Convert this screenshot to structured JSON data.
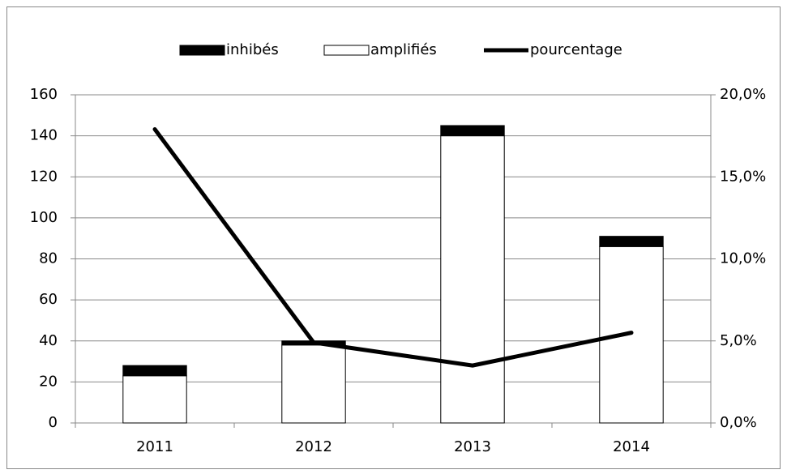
{
  "chart_data": {
    "type": "bar",
    "stacked": true,
    "categories": [
      "2011",
      "2012",
      "2013",
      "2014"
    ],
    "series": [
      {
        "name": "amplifiés",
        "color": "#ffffff",
        "values": [
          23,
          38,
          140,
          86
        ]
      },
      {
        "name": "inhibés",
        "color": "#000000",
        "values": [
          5,
          2,
          5,
          5
        ]
      },
      {
        "name": "pourcentage",
        "color": "#000000",
        "type": "line",
        "axis": "y2",
        "values": [
          17.9,
          4.9,
          3.5,
          5.5
        ]
      }
    ],
    "legend_order": [
      1,
      0,
      2
    ],
    "ylim": [
      0,
      160
    ],
    "yticks": [
      0,
      20,
      40,
      60,
      80,
      100,
      120,
      140,
      160
    ],
    "y2lim": [
      0,
      20
    ],
    "y2ticks": [
      {
        "value": 0,
        "label": "0,0%"
      },
      {
        "value": 5,
        "label": "5,0%"
      },
      {
        "value": 10,
        "label": "10,0%"
      },
      {
        "value": 15,
        "label": "15,0%"
      },
      {
        "value": 20,
        "label": "20,0%"
      }
    ],
    "grid": true,
    "legend": "top"
  }
}
